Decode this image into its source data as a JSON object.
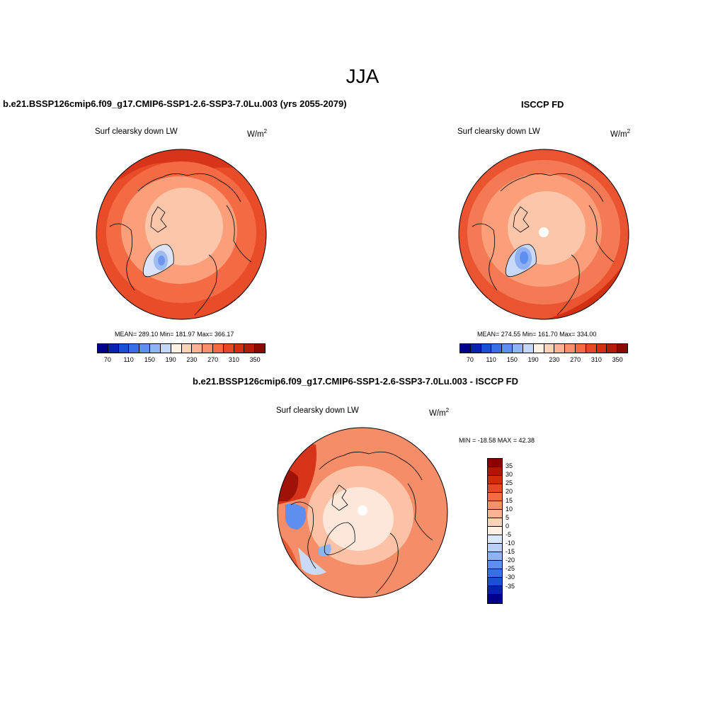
{
  "figure": {
    "season": "JJA"
  },
  "panels": {
    "left": {
      "title": "b.e21.BSSP126cmip6.f09_g17.CMIP6-SSP1-2.6-SSP3-7.0Lu.003 (yrs 2055-2079)",
      "variable": "Surf clearsky down LW",
      "units": "W/m",
      "units_exp": "2",
      "stats": "MEAN= 289.10  Min= 181.97  Max= 366.17"
    },
    "right": {
      "title": "ISCCP FD",
      "variable": "Surf clearsky down LW",
      "units": "W/m",
      "units_exp": "2",
      "stats": "MEAN= 274.55  Min= 161.70  Max= 334.00"
    },
    "diff": {
      "title": "b.e21.BSSP126cmip6.f09_g17.CMIP6-SSP1-2.6-SSP3-7.0Lu.003 - ISCCP FD",
      "variable": "Surf clearsky down LW",
      "units": "W/m",
      "units_exp": "2",
      "stats": "MIN = -18.58 MAX =  42.38"
    }
  },
  "colorbar_abs": {
    "colors": [
      "#00008b",
      "#0a22b0",
      "#1a4fd6",
      "#3a6ee8",
      "#5e8ef0",
      "#8fb4f5",
      "#c3d7f8",
      "#fdf1e4",
      "#fcd2b8",
      "#fbb394",
      "#f88f6c",
      "#f36a45",
      "#e84724",
      "#d52f12",
      "#b51c08",
      "#8b0a00"
    ],
    "tick_labels": [
      "70",
      "110",
      "150",
      "190",
      "230",
      "270",
      "310",
      "350"
    ]
  },
  "colorbar_diff": {
    "colors": [
      "#8b0000",
      "#b01500",
      "#d42a0c",
      "#e84724",
      "#f36a45",
      "#f88f6c",
      "#fbb394",
      "#fcd2b8",
      "#fdf1e4",
      "#dbe8fb",
      "#b9cff7",
      "#8fb4f5",
      "#5e8ef0",
      "#3a6ee8",
      "#1a4fd6",
      "#0a22b0",
      "#00008b"
    ],
    "tick_labels": [
      "35",
      "30",
      "25",
      "20",
      "15",
      "10",
      "5",
      "0",
      "-5",
      "-10",
      "-15",
      "-20",
      "-25",
      "-30",
      "-35"
    ]
  },
  "map_fill": {
    "outer": "#e84c28",
    "mid": "#f36a45",
    "inner": "#fb9e7a",
    "pole": "#fcc6aa",
    "low": "#9cbcf2",
    "lowest": "#6f95ec",
    "diff_base": "#f9a27f",
    "diff_light": "#fde7da",
    "diff_dark": "#d7341a",
    "diff_darkest": "#9e1208",
    "diff_neg": "#b9cff7",
    "diff_neg_strong": "#5e8ef0"
  }
}
